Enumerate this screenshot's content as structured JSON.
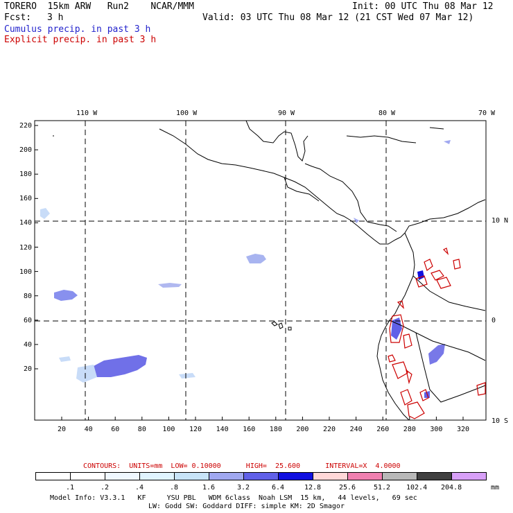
{
  "header": {
    "model_line": "TORERO  15km ARW   Run2    NCAR/MMM",
    "init": "Init: 00 UTC Thu 08 Mar 12",
    "fcst_label": "Fcst:",
    "fcst_value": "3 h",
    "valid": "Valid: 03 UTC Thu 08 Mar 12 (21 CST Wed 07 Mar 12)",
    "field1": "Cumulus precip. in past 3 h",
    "field2": "Explicit precip. in past 3 h"
  },
  "colors": {
    "cumulus": "#2222cc",
    "explicit": "#cc0000",
    "grid": "#000000"
  },
  "top_lon_labels": [
    "110 W",
    "100 W",
    "90 W",
    "80 W",
    "70 W"
  ],
  "right_lat_labels": [
    "10 N",
    "0",
    "10 S"
  ],
  "left_ticks": [
    "220",
    "200",
    "180",
    "160",
    "140",
    "120",
    "100",
    "80",
    "60",
    "40",
    "20"
  ],
  "bottom_ticks": [
    "20",
    "40",
    "60",
    "80",
    "100",
    "120",
    "140",
    "160",
    "180",
    "200",
    "220",
    "240",
    "260",
    "280",
    "300",
    "320"
  ],
  "contour_info": "CONTOURS:  UNITS=mm  LOW= 0.10000      HIGH=  25.600      INTERVAL=X  4.0000",
  "colorbar": {
    "labels": [
      ".1",
      ".2",
      ".4",
      ".8",
      "1.6",
      "3.2",
      "6.4",
      "12.8",
      "25.6",
      "51.2",
      "102.4",
      "204.8"
    ],
    "unit": "mm",
    "colors": [
      "#ffffff",
      "#ffffff",
      "#f0f8ff",
      "#e0f4ff",
      "#c8e4f8",
      "#a0a8f0",
      "#6060e8",
      "#1010e0",
      "#ffd8d8",
      "#f080b0",
      "#b8b8b8",
      "#404040",
      "#d8a0f8"
    ]
  },
  "footer": {
    "line1": "Model Info: V3.3.1   KF     YSU PBL   WDM 6class  Noah LSM  15 km,   44 levels,   69 sec",
    "line2": "LW: Godd SW: Goddard DIFF: simple KM: 2D Smagor"
  }
}
